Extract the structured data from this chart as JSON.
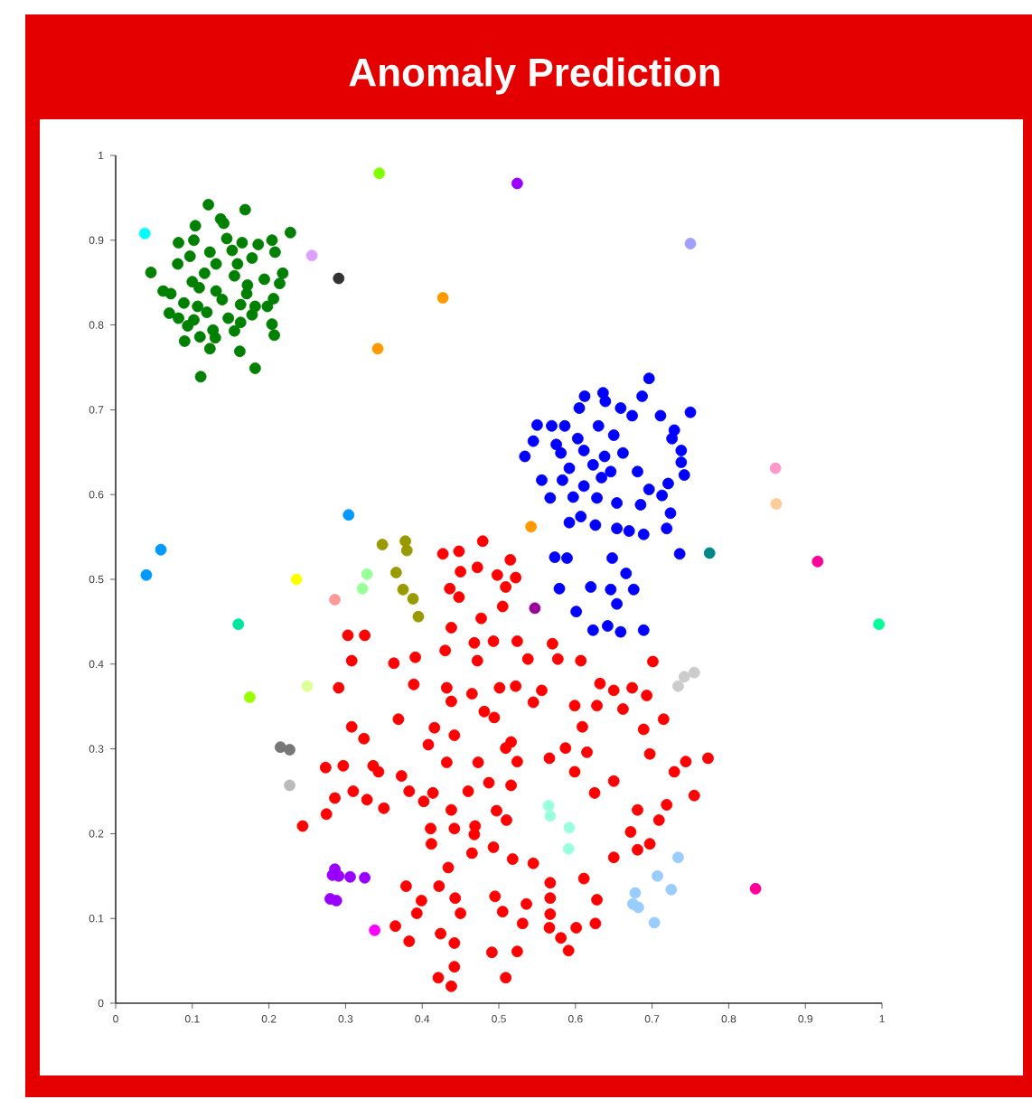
{
  "chart_data": {
    "type": "scatter",
    "title": "Anomaly Prediction",
    "xlim": [
      0,
      1
    ],
    "ylim": [
      0,
      1
    ],
    "xticks": [
      0,
      0.1,
      0.2,
      0.3,
      0.4,
      0.5,
      0.6,
      0.7,
      0.8,
      0.9,
      1
    ],
    "yticks": [
      0,
      0.1,
      0.2,
      0.3,
      0.4,
      0.5,
      0.6,
      0.7,
      0.8,
      0.9,
      1
    ],
    "series": [
      {
        "color": "#008000",
        "x": [
          0.121,
          0.169,
          0.228,
          0.104,
          0.137,
          0.141,
          0.082,
          0.102,
          0.204,
          0.145,
          0.165,
          0.186,
          0.081,
          0.097,
          0.123,
          0.152,
          0.178,
          0.208,
          0.046,
          0.218,
          0.214,
          0.072,
          0.109,
          0.131,
          0.155,
          0.172,
          0.194,
          0.089,
          0.107,
          0.139,
          0.163,
          0.206,
          0.07,
          0.082,
          0.102,
          0.119,
          0.147,
          0.178,
          0.204,
          0.094,
          0.127,
          0.163,
          0.207,
          0.11,
          0.13,
          0.09,
          0.155,
          0.123,
          0.162,
          0.182,
          0.111,
          0.182,
          0.062,
          0.159,
          0.116,
          0.131,
          0.171,
          0.198,
          0.1
        ],
        "values": [
          0.942,
          0.936,
          0.909,
          0.917,
          0.925,
          0.92,
          0.897,
          0.9,
          0.9,
          0.902,
          0.897,
          0.895,
          0.872,
          0.881,
          0.886,
          0.888,
          0.879,
          0.886,
          0.862,
          0.861,
          0.849,
          0.837,
          0.844,
          0.84,
          0.858,
          0.847,
          0.854,
          0.826,
          0.822,
          0.83,
          0.824,
          0.831,
          0.814,
          0.808,
          0.806,
          0.815,
          0.808,
          0.812,
          0.801,
          0.799,
          0.794,
          0.803,
          0.788,
          0.786,
          0.785,
          0.781,
          0.793,
          0.772,
          0.769,
          0.749,
          0.739,
          0.822,
          0.84,
          0.872,
          0.861,
          0.872,
          0.837,
          0.822,
          0.851
        ]
      },
      {
        "color": "#0000ff",
        "x": [
          0.696,
          0.612,
          0.636,
          0.639,
          0.687,
          0.75,
          0.605,
          0.659,
          0.674,
          0.711,
          0.55,
          0.569,
          0.586,
          0.63,
          0.729,
          0.545,
          0.575,
          0.603,
          0.65,
          0.726,
          0.534,
          0.581,
          0.611,
          0.638,
          0.662,
          0.738,
          0.738,
          0.592,
          0.623,
          0.646,
          0.681,
          0.742,
          0.556,
          0.583,
          0.611,
          0.634,
          0.696,
          0.721,
          0.567,
          0.597,
          0.628,
          0.654,
          0.685,
          0.713,
          0.592,
          0.607,
          0.626,
          0.654,
          0.67,
          0.689,
          0.719,
          0.724,
          0.573,
          0.589,
          0.648,
          0.736,
          0.666,
          0.579,
          0.62,
          0.646,
          0.676,
          0.654,
          0.601,
          0.623,
          0.642,
          0.659,
          0.689
        ],
        "values": [
          0.737,
          0.716,
          0.72,
          0.71,
          0.716,
          0.697,
          0.702,
          0.702,
          0.693,
          0.693,
          0.682,
          0.681,
          0.681,
          0.681,
          0.676,
          0.663,
          0.659,
          0.666,
          0.67,
          0.666,
          0.645,
          0.649,
          0.652,
          0.645,
          0.649,
          0.652,
          0.638,
          0.631,
          0.635,
          0.627,
          0.627,
          0.623,
          0.617,
          0.617,
          0.61,
          0.62,
          0.606,
          0.613,
          0.596,
          0.597,
          0.596,
          0.59,
          0.588,
          0.599,
          0.567,
          0.574,
          0.564,
          0.56,
          0.557,
          0.553,
          0.56,
          0.578,
          0.526,
          0.525,
          0.525,
          0.53,
          0.507,
          0.489,
          0.491,
          0.488,
          0.488,
          0.471,
          0.462,
          0.44,
          0.445,
          0.438,
          0.44
        ]
      },
      {
        "color": "#ff0000",
        "x": [
          0.479,
          0.427,
          0.448,
          0.515,
          0.472,
          0.45,
          0.498,
          0.522,
          0.436,
          0.509,
          0.448,
          0.477,
          0.505,
          0.438,
          0.303,
          0.325,
          0.43,
          0.468,
          0.493,
          0.524,
          0.57,
          0.308,
          0.363,
          0.391,
          0.472,
          0.538,
          0.577,
          0.607,
          0.701,
          0.291,
          0.389,
          0.432,
          0.465,
          0.501,
          0.522,
          0.556,
          0.632,
          0.65,
          0.674,
          0.693,
          0.369,
          0.438,
          0.481,
          0.545,
          0.599,
          0.628,
          0.662,
          0.308,
          0.324,
          0.416,
          0.442,
          0.494,
          0.516,
          0.609,
          0.689,
          0.715,
          0.408,
          0.509,
          0.587,
          0.615,
          0.697,
          0.773,
          0.274,
          0.297,
          0.336,
          0.373,
          0.432,
          0.473,
          0.524,
          0.566,
          0.599,
          0.65,
          0.729,
          0.744,
          0.31,
          0.383,
          0.414,
          0.46,
          0.487,
          0.516,
          0.625,
          0.755,
          0.286,
          0.328,
          0.35,
          0.402,
          0.438,
          0.497,
          0.681,
          0.719,
          0.244,
          0.275,
          0.411,
          0.442,
          0.469,
          0.51,
          0.709,
          0.672,
          0.412,
          0.465,
          0.493,
          0.65,
          0.697,
          0.681,
          0.434,
          0.518,
          0.545,
          0.379,
          0.399,
          0.443,
          0.495,
          0.567,
          0.611,
          0.628,
          0.422,
          0.393,
          0.45,
          0.505,
          0.536,
          0.567,
          0.383,
          0.424,
          0.442,
          0.531,
          0.566,
          0.601,
          0.626,
          0.581,
          0.591,
          0.491,
          0.524,
          0.421,
          0.442,
          0.438,
          0.509,
          0.365,
          0.567,
          0.468,
          0.343
        ],
        "values": [
          0.545,
          0.53,
          0.533,
          0.523,
          0.514,
          0.509,
          0.505,
          0.502,
          0.489,
          0.491,
          0.479,
          0.454,
          0.468,
          0.443,
          0.434,
          0.434,
          0.416,
          0.425,
          0.427,
          0.427,
          0.424,
          0.404,
          0.401,
          0.408,
          0.404,
          0.406,
          0.406,
          0.404,
          0.403,
          0.372,
          0.376,
          0.372,
          0.365,
          0.372,
          0.374,
          0.369,
          0.377,
          0.369,
          0.372,
          0.363,
          0.335,
          0.356,
          0.344,
          0.355,
          0.351,
          0.351,
          0.347,
          0.326,
          0.312,
          0.325,
          0.316,
          0.337,
          0.308,
          0.326,
          0.323,
          0.335,
          0.305,
          0.301,
          0.301,
          0.296,
          0.294,
          0.289,
          0.278,
          0.28,
          0.28,
          0.268,
          0.284,
          0.284,
          0.285,
          0.289,
          0.273,
          0.262,
          0.273,
          0.285,
          0.25,
          0.25,
          0.248,
          0.25,
          0.26,
          0.257,
          0.248,
          0.245,
          0.242,
          0.24,
          0.23,
          0.238,
          0.228,
          0.227,
          0.228,
          0.234,
          0.209,
          0.223,
          0.206,
          0.206,
          0.209,
          0.216,
          0.216,
          0.202,
          0.188,
          0.177,
          0.184,
          0.172,
          0.188,
          0.181,
          0.16,
          0.17,
          0.165,
          0.138,
          0.121,
          0.124,
          0.126,
          0.142,
          0.147,
          0.122,
          0.138,
          0.106,
          0.106,
          0.108,
          0.117,
          0.124,
          0.073,
          0.082,
          0.071,
          0.094,
          0.089,
          0.089,
          0.094,
          0.077,
          0.062,
          0.06,
          0.061,
          0.03,
          0.043,
          0.02,
          0.03,
          0.091,
          0.105,
          0.199,
          0.273
        ]
      },
      {
        "color": "#00ffff",
        "x": [
          0.038
        ],
        "values": [
          0.908
        ]
      },
      {
        "color": "#80ff00",
        "x": [
          0.344
        ],
        "values": [
          0.979
        ]
      },
      {
        "color": "#9900ff",
        "x": [
          0.524,
          0.286,
          0.291,
          0.283,
          0.306,
          0.325,
          0.28,
          0.288
        ],
        "values": [
          0.967,
          0.158,
          0.15,
          0.151,
          0.149,
          0.148,
          0.123,
          0.121
        ]
      },
      {
        "color": "#a0a0ff",
        "x": [
          0.75
        ],
        "values": [
          0.896
        ]
      },
      {
        "color": "#dda0ff",
        "x": [
          0.256
        ],
        "values": [
          0.882
        ]
      },
      {
        "color": "#333333",
        "x": [
          0.291
        ],
        "values": [
          0.855
        ]
      },
      {
        "color": "#ff9900",
        "x": [
          0.427,
          0.342,
          0.542
        ],
        "values": [
          0.832,
          0.772,
          0.562
        ]
      },
      {
        "color": "#0099ff",
        "x": [
          0.304,
          0.059,
          0.04
        ],
        "values": [
          0.576,
          0.535,
          0.505
        ]
      },
      {
        "color": "#ffff00",
        "x": [
          0.236
        ],
        "values": [
          0.5
        ]
      },
      {
        "color": "#ff9999",
        "x": [
          0.286
        ],
        "values": [
          0.476
        ]
      },
      {
        "color": "#99ff99",
        "x": [
          0.328,
          0.322
        ],
        "values": [
          0.506,
          0.489
        ]
      },
      {
        "color": "#999900",
        "x": [
          0.348,
          0.378,
          0.38,
          0.366,
          0.375,
          0.388,
          0.395
        ],
        "values": [
          0.541,
          0.545,
          0.534,
          0.508,
          0.488,
          0.477,
          0.456
        ]
      },
      {
        "color": "#990099",
        "x": [
          0.547
        ],
        "values": [
          0.466
        ]
      },
      {
        "color": "#00e5a0",
        "x": [
          0.16
        ],
        "values": [
          0.447
        ]
      },
      {
        "color": "#00ff99",
        "x": [
          0.996
        ],
        "values": [
          0.447
        ]
      },
      {
        "color": "#99ff00",
        "x": [
          0.175
        ],
        "values": [
          0.361
        ]
      },
      {
        "color": "#ddff99",
        "x": [
          0.25
        ],
        "values": [
          0.374
        ]
      },
      {
        "color": "#777777",
        "x": [
          0.215,
          0.227
        ],
        "values": [
          0.302,
          0.299
        ]
      },
      {
        "color": "#bbbbbb",
        "x": [
          0.227
        ],
        "values": [
          0.257
        ]
      },
      {
        "color": "#cccccc",
        "x": [
          0.734,
          0.742,
          0.755
        ],
        "values": [
          0.374,
          0.385,
          0.39
        ]
      },
      {
        "color": "#ff00ff",
        "x": [
          0.338
        ],
        "values": [
          0.086
        ]
      },
      {
        "color": "#99ffdd",
        "x": [
          0.565,
          0.567,
          0.592,
          0.591
        ],
        "values": [
          0.233,
          0.221,
          0.207,
          0.182
        ]
      },
      {
        "color": "#99ccff",
        "x": [
          0.734,
          0.707,
          0.725,
          0.678,
          0.675,
          0.682,
          0.703
        ],
        "values": [
          0.172,
          0.15,
          0.134,
          0.13,
          0.117,
          0.113,
          0.095
        ]
      },
      {
        "color": "#ff0099",
        "x": [
          0.835,
          0.916
        ],
        "values": [
          0.135,
          0.521
        ]
      },
      {
        "color": "#ff99cc",
        "x": [
          0.861
        ],
        "values": [
          0.631
        ]
      },
      {
        "color": "#ffcc99",
        "x": [
          0.862
        ],
        "values": [
          0.589
        ]
      },
      {
        "color": "#008888",
        "x": [
          0.775
        ],
        "values": [
          0.531
        ]
      }
    ]
  }
}
